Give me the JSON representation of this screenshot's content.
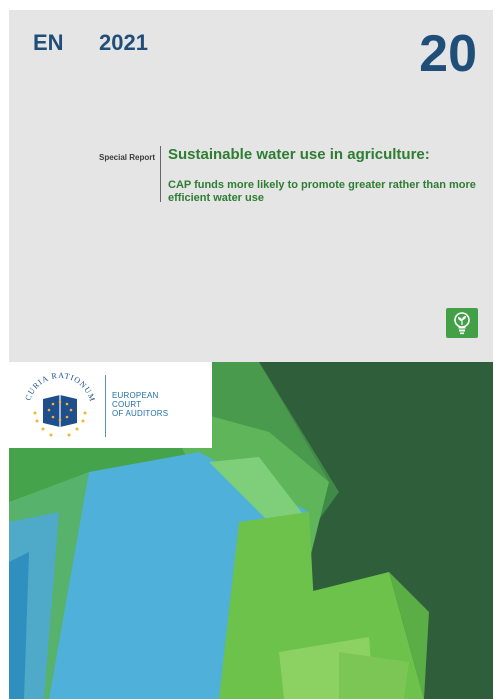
{
  "cover": {
    "language": "EN",
    "year": "2021",
    "report_number": "20",
    "series_label": "Special Report",
    "title": "Sustainable water use in agriculture:",
    "subtitle": "CAP funds more likely to promote greater rather than more efficient water use"
  },
  "institution": {
    "seal_motto": "CURIA RATIONUM",
    "name_lines": [
      "EUROPEAN",
      "COURT",
      "OF AUDITORS"
    ]
  },
  "colors": {
    "navy": "#1f4e79",
    "title_green": "#2e7d32",
    "panel_grey": "#e5e5e6",
    "dark_green": "#2e5e3a",
    "mid_green": "#4caf50",
    "light_green": "#76c442",
    "water_blue": "#4fb0d9",
    "eu_blue": "#1f4e8c",
    "gold": "#f2b632"
  },
  "icons": [
    "lightbulb-plant-icon",
    "eu-stars-icon"
  ]
}
